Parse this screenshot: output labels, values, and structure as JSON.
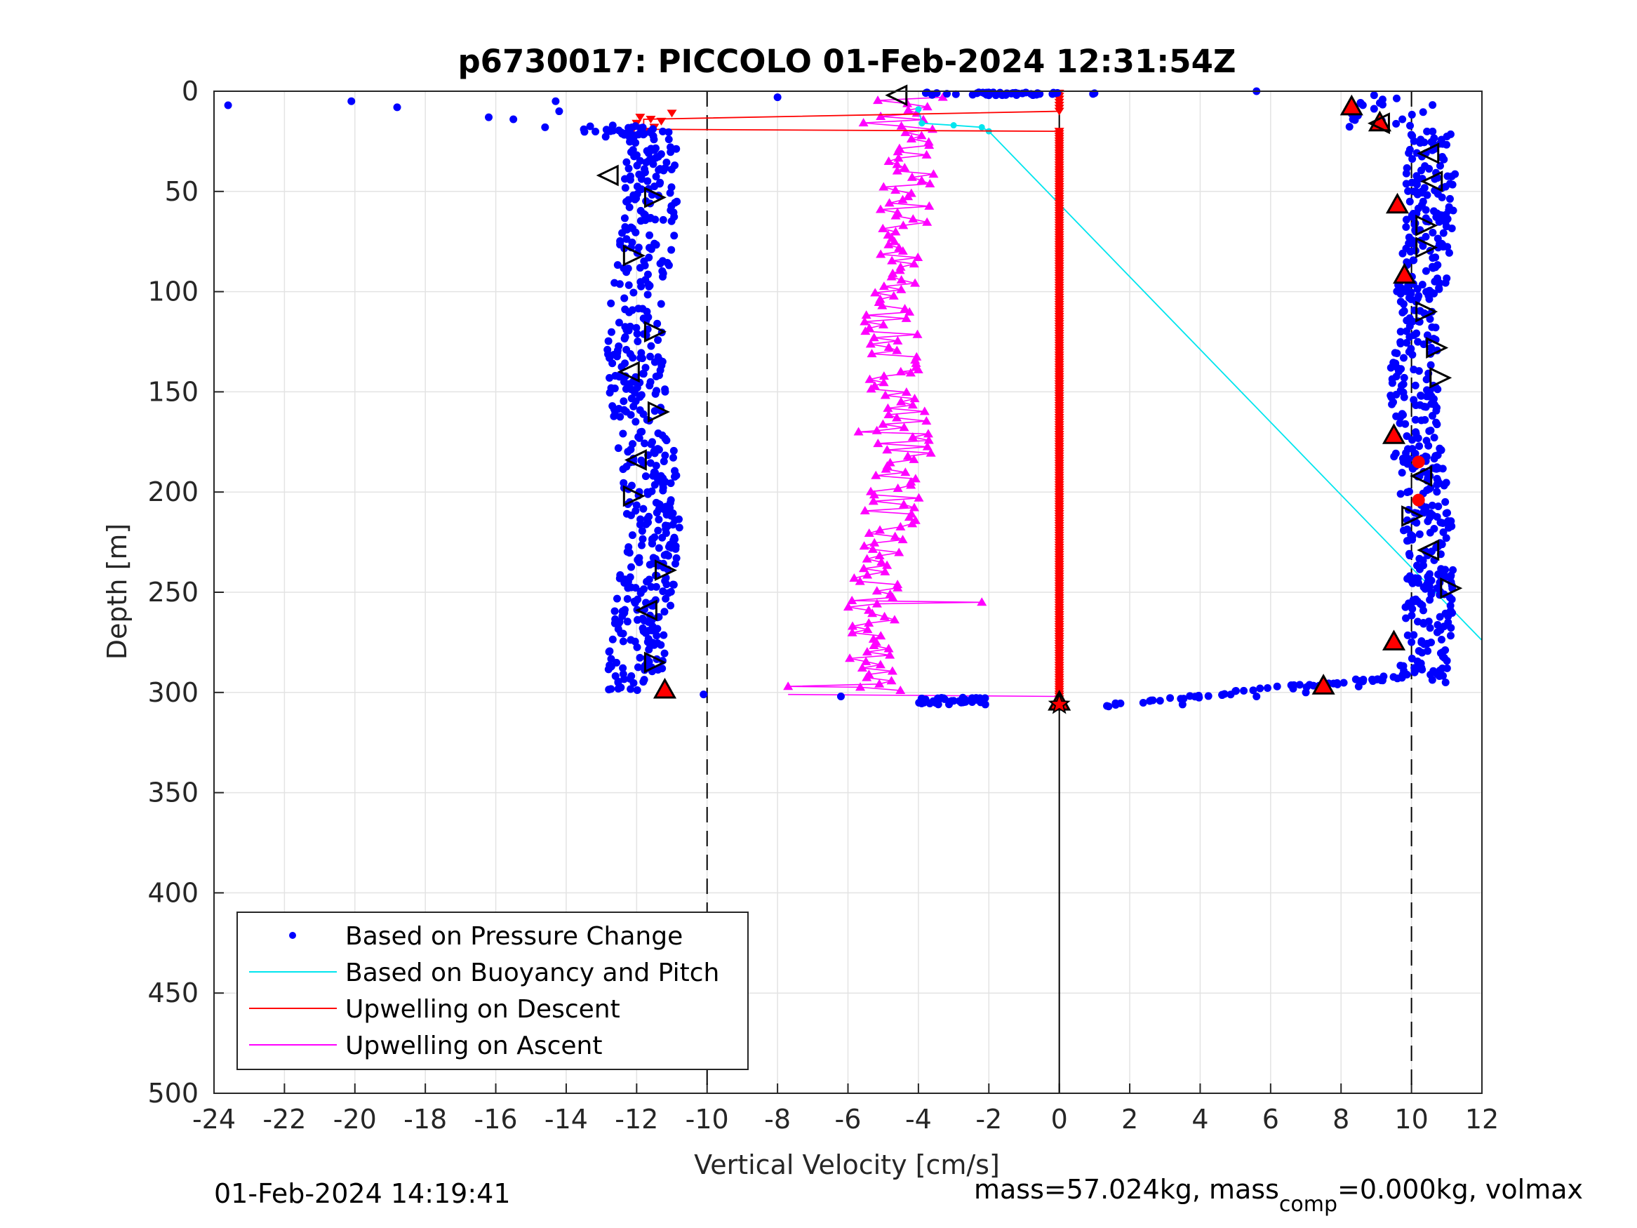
{
  "chart_data": {
    "type": "scatter",
    "title": "p6730017: PICCOLO 01-Feb-2024 12:31:54Z",
    "xlabel": "Vertical Velocity [cm/s]",
    "ylabel": "Depth [m]",
    "xlim": [
      -24,
      12
    ],
    "ylim": [
      0,
      500
    ],
    "y_reversed": true,
    "grid": true,
    "xticks": [
      "-24",
      "-22",
      "-20",
      "-18",
      "-16",
      "-14",
      "-12",
      "-10",
      "-8",
      "-6",
      "-4",
      "-2",
      "0",
      "2",
      "4",
      "6",
      "8",
      "10",
      "12"
    ],
    "yticks": [
      "0",
      "50",
      "100",
      "150",
      "200",
      "250",
      "300",
      "350",
      "400",
      "450",
      "500"
    ],
    "reference_lines": {
      "dashed_x": [
        -10,
        10
      ],
      "solid_x": [
        0
      ]
    },
    "legend": {
      "placement": "bottom-left",
      "entries": [
        {
          "label": "Based on Pressure Change",
          "color": "#0000ff",
          "style": "dot"
        },
        {
          "label": "Based on Buoyancy and Pitch",
          "color": "#00e5ee",
          "style": "line"
        },
        {
          "label": "Upwelling on Descent",
          "color": "#ff0000",
          "style": "line"
        },
        {
          "label": "Upwelling on Ascent",
          "color": "#ff00ff",
          "style": "line"
        }
      ]
    },
    "series": [
      {
        "name": "Based on Pressure Change",
        "color": "#0000ff",
        "segments": {
          "descent": {
            "v_center": -11.8,
            "v_spread": 0.8,
            "depth": [
              20,
              300
            ]
          },
          "ascent": {
            "v_center": 10.3,
            "v_spread": 0.7,
            "depth": [
              20,
              295
            ]
          },
          "surface_scatter": [
            [
              -23.6,
              7
            ],
            [
              -20.1,
              5
            ],
            [
              -18.8,
              8
            ],
            [
              -16.2,
              13
            ],
            [
              -15.5,
              14
            ],
            [
              -14.6,
              18
            ],
            [
              -14.3,
              5
            ],
            [
              -14.2,
              10
            ],
            [
              -13.5,
              19
            ],
            [
              -8.0,
              3
            ],
            [
              -2.0,
              2
            ],
            [
              1.0,
              1
            ],
            [
              5.6,
              0
            ]
          ],
          "bottom_scatter": [
            [
              -10.1,
              301
            ],
            [
              -6.2,
              302
            ],
            [
              -3.9,
              303
            ],
            [
              -2.1,
              306
            ],
            [
              1.4,
              307
            ],
            [
              3.5,
              306
            ],
            [
              5.6,
              302
            ],
            [
              7.0,
              300
            ],
            [
              8.5,
              297
            ],
            [
              9.6,
              293
            ]
          ]
        }
      },
      {
        "name": "Based on Buoyancy and Pitch",
        "color": "#00e5ee",
        "points": [
          [
            -4.0,
            9
          ],
          [
            -3.9,
            16
          ],
          [
            -3.0,
            17
          ],
          [
            -2.2,
            18
          ],
          [
            -2.0,
            20
          ],
          [
            12.0,
            274
          ]
        ]
      },
      {
        "name": "Upwelling on Descent",
        "color": "#ff0000",
        "points": [
          [
            0,
            1
          ],
          [
            0,
            10
          ],
          [
            -11.8,
            14
          ],
          [
            -11.8,
            19
          ],
          [
            0,
            20
          ],
          [
            0,
            305
          ]
        ]
      },
      {
        "name": "Upwelling on Ascent",
        "color": "#ff00ff",
        "v_center": -4.8,
        "v_spread": 0.8,
        "depth": [
          3,
          300
        ],
        "outliers": [
          [
            -2.2,
            255
          ],
          [
            -7.7,
            297
          ],
          [
            -5.7,
            170
          ],
          [
            -4.5,
            140
          ]
        ]
      }
    ],
    "markers": {
      "up_triangles_red": [
        [
          -11.2,
          299
        ],
        [
          8.3,
          8
        ],
        [
          9.1,
          16
        ],
        [
          9.6,
          57
        ],
        [
          9.8,
          92
        ],
        [
          9.5,
          172
        ],
        [
          9.5,
          275
        ],
        [
          7.5,
          297
        ],
        [
          0,
          305
        ]
      ],
      "red_dots": [
        [
          10.2,
          185
        ],
        [
          10.2,
          204
        ]
      ],
      "left_triangles_open": [
        [
          -4.6,
          2
        ],
        [
          9.1,
          16
        ],
        [
          -12.8,
          42
        ],
        [
          -12.2,
          140
        ],
        [
          -12.0,
          184
        ],
        [
          -11.7,
          259
        ],
        [
          10.5,
          31
        ],
        [
          10.6,
          45
        ],
        [
          10.3,
          192
        ],
        [
          10.5,
          229
        ]
      ],
      "right_triangles_open": [
        [
          -11.5,
          53
        ],
        [
          -12.1,
          82
        ],
        [
          -11.5,
          120
        ],
        [
          -11.4,
          160
        ],
        [
          -12.1,
          202
        ],
        [
          -11.2,
          239
        ],
        [
          -11.5,
          285
        ],
        [
          10.4,
          67
        ],
        [
          10.4,
          78
        ],
        [
          10.4,
          110
        ],
        [
          10.7,
          128
        ],
        [
          10.8,
          143
        ],
        [
          10.0,
          212
        ],
        [
          11.1,
          248
        ]
      ]
    }
  },
  "footer": {
    "timestamp": "01-Feb-2024 14:19:41",
    "mass_text": "mass=57.024kg, mass",
    "mass_sub": "comp",
    "mass_tail": "=0.000kg, volmax"
  }
}
